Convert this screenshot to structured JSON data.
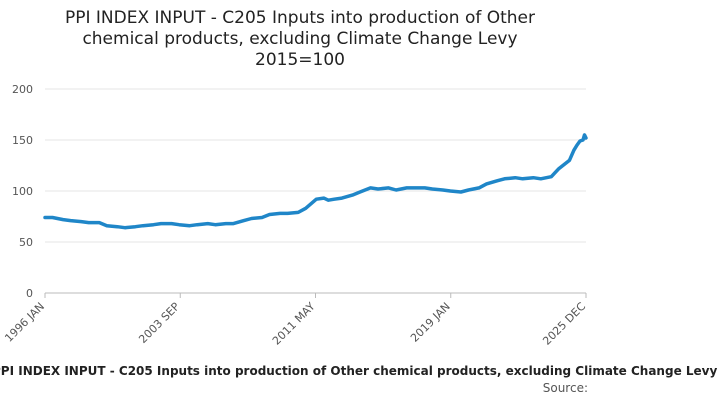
{
  "chart_data": {
    "type": "line",
    "title_lines": [
      "PPI INDEX INPUT - C205 Inputs into production of Other",
      "chemical products, excluding Climate Change Levy",
      "2015=100"
    ],
    "xlabel": "",
    "ylabel": "",
    "ylim": [
      0,
      200
    ],
    "y_ticks": [
      "0",
      "50",
      "100",
      "150",
      "200"
    ],
    "x_tick_labels": [
      "1996 JAN",
      "2003 SEP",
      "2011 MAY",
      "2019 JAN",
      "2025 DEC"
    ],
    "x_range": [
      "1996-01",
      "2025-12"
    ],
    "grid": "horizontal",
    "legend": "bottom",
    "series": [
      {
        "name": "PPI INDEX INPUT - C205 Inputs into production of Other chemical products, excluding Climate Change Levy",
        "color": "#1f86c8",
        "points": [
          [
            "1996-01",
            74
          ],
          [
            "1996-06",
            74
          ],
          [
            "1997-01",
            72
          ],
          [
            "1997-06",
            71
          ],
          [
            "1998-01",
            70
          ],
          [
            "1998-06",
            69
          ],
          [
            "1999-01",
            69
          ],
          [
            "1999-06",
            66
          ],
          [
            "2000-01",
            65
          ],
          [
            "2000-06",
            64
          ],
          [
            "2001-01",
            65
          ],
          [
            "2001-06",
            66
          ],
          [
            "2002-01",
            67
          ],
          [
            "2002-06",
            68
          ],
          [
            "2003-01",
            68
          ],
          [
            "2003-06",
            67
          ],
          [
            "2004-01",
            66
          ],
          [
            "2004-06",
            67
          ],
          [
            "2005-01",
            68
          ],
          [
            "2005-06",
            67
          ],
          [
            "2006-01",
            68
          ],
          [
            "2006-06",
            68
          ],
          [
            "2007-01",
            71
          ],
          [
            "2007-06",
            73
          ],
          [
            "2008-01",
            74
          ],
          [
            "2008-06",
            77
          ],
          [
            "2009-01",
            78
          ],
          [
            "2009-06",
            78
          ],
          [
            "2010-01",
            79
          ],
          [
            "2010-06",
            83
          ],
          [
            "2011-01",
            92
          ],
          [
            "2011-06",
            93
          ],
          [
            "2011-09",
            91
          ],
          [
            "2012-01",
            92
          ],
          [
            "2012-06",
            93
          ],
          [
            "2013-01",
            96
          ],
          [
            "2013-06",
            99
          ],
          [
            "2014-01",
            103
          ],
          [
            "2014-06",
            102
          ],
          [
            "2015-01",
            103
          ],
          [
            "2015-06",
            101
          ],
          [
            "2016-01",
            103
          ],
          [
            "2016-06",
            103
          ],
          [
            "2017-01",
            103
          ],
          [
            "2017-06",
            102
          ],
          [
            "2018-01",
            101
          ],
          [
            "2018-06",
            100
          ],
          [
            "2019-01",
            99
          ],
          [
            "2019-06",
            101
          ],
          [
            "2020-01",
            103
          ],
          [
            "2020-06",
            107
          ],
          [
            "2021-01",
            110
          ],
          [
            "2021-06",
            112
          ],
          [
            "2022-01",
            113
          ],
          [
            "2022-06",
            112
          ],
          [
            "2023-01",
            113
          ],
          [
            "2023-06",
            112
          ],
          [
            "2024-01",
            114
          ],
          [
            "2024-06",
            122
          ],
          [
            "2025-01",
            130
          ],
          [
            "2025-04",
            140
          ],
          [
            "2025-06",
            145
          ],
          [
            "2025-08",
            149
          ],
          [
            "2025-10",
            150
          ],
          [
            "2025-11",
            155
          ],
          [
            "2025-12",
            152
          ]
        ]
      }
    ]
  },
  "footer": {
    "series_label": "PPI INDEX INPUT - C205 Inputs into production of Other chemical products, excluding Climate Change Levy",
    "source_label": "Source:"
  }
}
